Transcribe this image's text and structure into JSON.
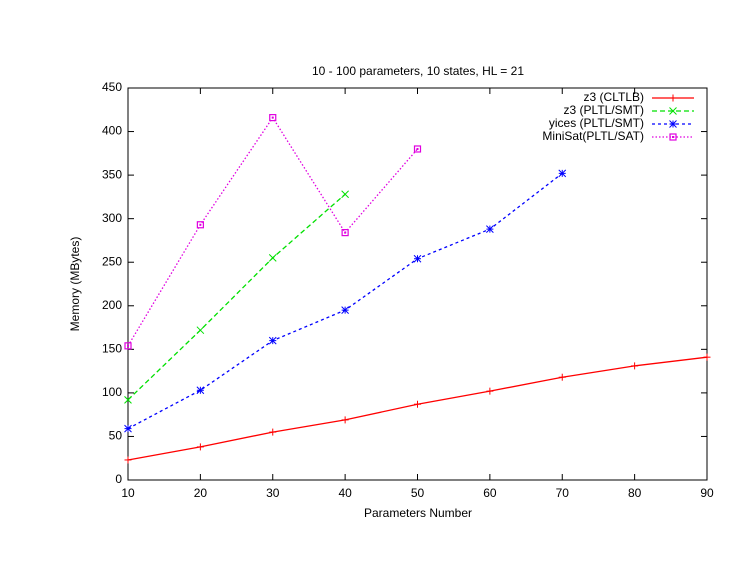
{
  "chart_data": {
    "type": "line",
    "title": "10 - 100 parameters, 10 states, HL = 21",
    "x_label": "Parameters Number",
    "y_label": "Memory (MBytes)",
    "x": [
      10,
      20,
      30,
      40,
      50,
      60,
      70,
      80,
      90
    ],
    "xlim": [
      10,
      90
    ],
    "xticks": [
      10,
      20,
      30,
      40,
      50,
      60,
      70,
      80,
      90
    ],
    "ylim": [
      0,
      450
    ],
    "yticks": [
      0,
      50,
      100,
      150,
      200,
      250,
      300,
      350,
      400,
      450
    ],
    "legend": "top-right",
    "series": [
      {
        "name": "z3 (CLTLB)",
        "color": "#ff0000",
        "values": [
          23,
          38,
          55,
          69,
          87,
          102,
          118,
          131,
          141
        ]
      },
      {
        "name": "z3 (PLTL/SMT)",
        "color": "#00e000",
        "values": [
          92,
          172,
          255,
          328,
          null,
          null,
          null,
          null,
          null
        ]
      },
      {
        "name": "yices (PLTL/SMT)",
        "color": "#0000ff",
        "values": [
          59,
          103,
          160,
          195,
          254,
          288,
          352,
          null,
          null
        ]
      },
      {
        "name": "MiniSat(PLTL/SAT)",
        "color": "#e000e0",
        "values": [
          154,
          293,
          416,
          284,
          380,
          null,
          null,
          null,
          null
        ]
      }
    ]
  }
}
